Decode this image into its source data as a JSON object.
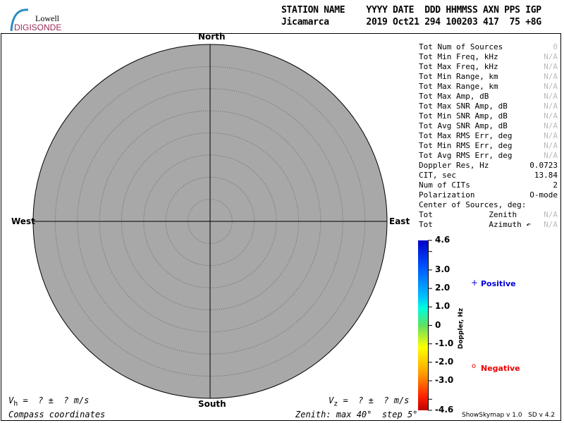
{
  "logo": {
    "line1": "Lowell",
    "line2": "DIGISONDE"
  },
  "header": {
    "labels": "STATION NAME    YYYY DATE  DDD HHMMSS AXN PPS IGP",
    "values": "Jicamarca       2019 Oct21 294 100203 417  75 +8G"
  },
  "compass": {
    "north": "North",
    "south": "South",
    "east": "East",
    "west": "West",
    "zenith_max_deg": 40,
    "zenith_step_deg": 5
  },
  "stats": [
    {
      "label": "Tot Num of Sources",
      "value": "0",
      "na": true
    },
    {
      "label": "Tot Min Freq, kHz",
      "value": "N/A",
      "na": true
    },
    {
      "label": "Tot Max Freq, kHz",
      "value": "N/A",
      "na": true
    },
    {
      "label": "Tot Min Range, km",
      "value": "N/A",
      "na": true
    },
    {
      "label": "Tot Max Range, km",
      "value": "N/A",
      "na": true
    },
    {
      "label": "Tot Max Amp, dB",
      "value": "N/A",
      "na": true
    },
    {
      "label": "Tot Max SNR Amp, dB",
      "value": "N/A",
      "na": true
    },
    {
      "label": "Tot Min SNR Amp, dB",
      "value": "N/A",
      "na": true
    },
    {
      "label": "Tot Avg SNR Amp, dB",
      "value": "N/A",
      "na": true
    },
    {
      "label": "Tot Max RMS Err, deg",
      "value": "N/A",
      "na": true
    },
    {
      "label": "Tot Min RMS Err, deg",
      "value": "N/A",
      "na": true
    },
    {
      "label": "Tot Avg RMS Err, deg",
      "value": "N/A",
      "na": true
    },
    {
      "label": "Doppler Res, Hz",
      "value": "0.0723",
      "na": false
    },
    {
      "label": "CIT, sec",
      "value": "13.84",
      "na": false
    },
    {
      "label": "Num of CITs",
      "value": "2",
      "na": false
    },
    {
      "label": "Polarization",
      "value": "O-mode",
      "na": false
    },
    {
      "label": "Center of Sources, deg:",
      "value": "",
      "na": false
    },
    {
      "label": "Tot            Zenith",
      "value": "N/A",
      "na": true
    },
    {
      "label": "Tot            Azimuth ↶",
      "value": "N/A",
      "na": true
    }
  ],
  "colorbar": {
    "title": "Doppler, Hz",
    "ticks": [
      "4.6",
      "3.0",
      "2.0",
      "1.0",
      "0",
      "-1.0",
      "-2.0",
      "-3.0",
      "-4.6"
    ],
    "tick_values": [
      4.6,
      3,
      2,
      1,
      0,
      -1,
      -2,
      -3,
      -4.6
    ],
    "range": [
      -4.6,
      4.6
    ]
  },
  "legend": {
    "positive": "Positive",
    "negative": "Negative",
    "positive_symbol": "+",
    "negative_symbol": "o",
    "positive_color": "#0000dd",
    "negative_color": "#ee0000"
  },
  "footer": {
    "vh": "V",
    "vh_sub": "h",
    "vh_text": " =  ? ±  ? m/s",
    "vz": "V",
    "vz_sub": "z",
    "vz_text": " =  ? ±  ? m/s",
    "coords": "Compass coordinates",
    "zenith": "Zenith: max 40°  step 5°",
    "version": "ShowSkymap v 1.0   SD v 4.2"
  }
}
